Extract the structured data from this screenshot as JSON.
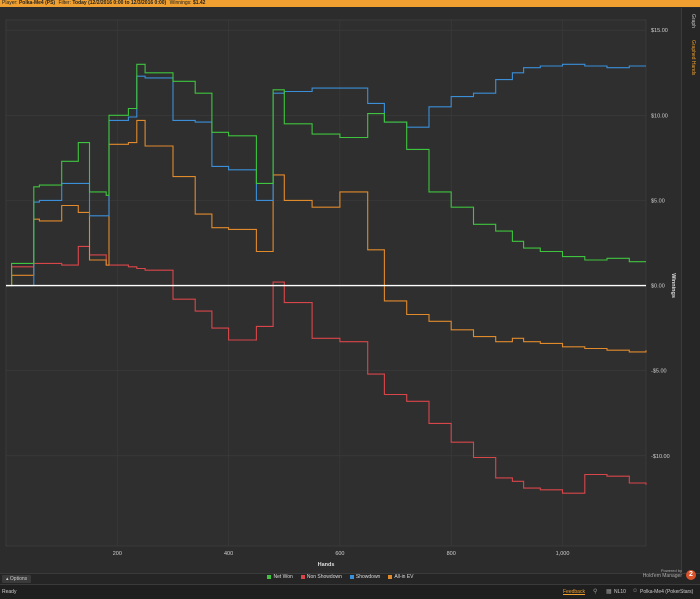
{
  "topbar": {
    "player_label": "Player:",
    "player_name": "Polka-Me4 (PS)",
    "filter_label": "Filter:",
    "filter_value": "Today (12/2/2016 0:00 to 12/3/2016 0:00)",
    "winnings_label": "Winnings:",
    "winnings_value": "$1.42"
  },
  "sidetabs": {
    "graph": "Graph",
    "graphed_hands": "Graphed Hands"
  },
  "footer": {
    "options": "Options",
    "powered_by": "Powered by",
    "brand": "Hold'em Manager",
    "brand_badge": "2"
  },
  "statusbar": {
    "ready": "Ready",
    "feedback": "Feedback",
    "stake": "NL10",
    "player_site": "Polka-Me4 (PokerStars)"
  },
  "colors": {
    "net_won": "#3ec43e",
    "non_showdown": "#d9464a",
    "showdown": "#3a8fd8",
    "allin_ev": "#e08a2c",
    "accent": "#f0a030"
  },
  "chart_data": {
    "type": "line",
    "xlabel": "Hands",
    "ylabel": "Winnings",
    "xlim": [
      0,
      1150
    ],
    "ylim": [
      -15.3,
      15.6
    ],
    "xticks": [
      200,
      400,
      600,
      800,
      1000
    ],
    "xtick_labels": [
      "200",
      "400",
      "600",
      "800",
      "1,000"
    ],
    "yticks": [
      15,
      10,
      5,
      0,
      -5,
      -10
    ],
    "ytick_labels": [
      "$15.00",
      "$10.00",
      "$5.00",
      "$0.00",
      "-$5.00",
      "-$10.00"
    ],
    "grid": true,
    "legend": "bottom",
    "x": [
      0,
      10,
      50,
      60,
      100,
      130,
      150,
      180,
      185,
      220,
      235,
      250,
      300,
      340,
      370,
      400,
      450,
      480,
      500,
      550,
      600,
      650,
      680,
      720,
      760,
      800,
      840,
      880,
      910,
      930,
      960,
      1000,
      1040,
      1080,
      1120,
      1150
    ],
    "series": [
      {
        "name": "Net Won",
        "values": [
          0,
          1.3,
          5.8,
          5.9,
          7.3,
          8.4,
          5.5,
          5.3,
          10.0,
          10.4,
          13.0,
          12.5,
          12.0,
          11.3,
          9.0,
          8.8,
          6.0,
          11.5,
          9.5,
          8.9,
          8.7,
          10.1,
          9.6,
          8.0,
          5.5,
          4.6,
          3.6,
          3.2,
          2.6,
          2.2,
          2.0,
          1.7,
          1.5,
          1.6,
          1.4,
          1.4
        ]
      },
      {
        "name": "Non Showdown",
        "values": [
          0,
          1.1,
          1.3,
          1.3,
          1.2,
          2.3,
          1.8,
          1.2,
          1.2,
          1.1,
          1.0,
          0.9,
          -0.8,
          -1.5,
          -2.5,
          -3.2,
          -2.4,
          0.2,
          -1.0,
          -3.1,
          -3.3,
          -5.2,
          -6.4,
          -6.8,
          -8.1,
          -9.2,
          -10.1,
          -11.3,
          -11.5,
          -11.9,
          -12.0,
          -12.2,
          -11.1,
          -11.2,
          -11.6,
          -11.7
        ]
      },
      {
        "name": "Showdown",
        "values": [
          0,
          0,
          4.9,
          5.0,
          6.0,
          6.0,
          4.1,
          4.1,
          9.7,
          9.9,
          12.3,
          12.2,
          9.7,
          9.6,
          7.0,
          6.8,
          5.0,
          11.3,
          11.4,
          11.6,
          11.6,
          10.7,
          9.6,
          9.3,
          10.5,
          11.1,
          11.3,
          12.1,
          12.5,
          12.8,
          12.9,
          13.0,
          12.9,
          12.8,
          12.9,
          12.9
        ]
      },
      {
        "name": "All-in EV",
        "values": [
          0,
          0.6,
          3.9,
          3.8,
          4.7,
          4.3,
          1.5,
          1.2,
          8.3,
          8.4,
          9.7,
          8.2,
          6.4,
          4.2,
          3.4,
          3.3,
          2.0,
          6.5,
          5.0,
          4.6,
          5.5,
          2.1,
          -0.9,
          -1.7,
          -2.1,
          -2.6,
          -3.0,
          -3.3,
          -3.1,
          -3.3,
          -3.4,
          -3.6,
          -3.7,
          -3.8,
          -3.9,
          -3.8
        ]
      }
    ]
  }
}
